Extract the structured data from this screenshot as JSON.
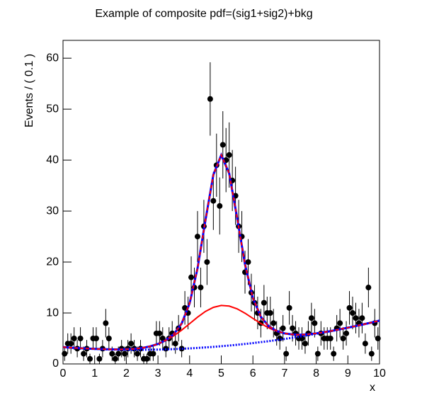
{
  "chart_data": {
    "type": "scatter",
    "title": "Example of composite pdf=(sig1+sig2)+bkg",
    "x_label": "x",
    "y_label": "Events / ( 0.1 )",
    "xlim": [
      0,
      10
    ],
    "ylim": [
      0,
      63.5
    ],
    "xticks": [
      0,
      1,
      2,
      3,
      4,
      5,
      6,
      7,
      8,
      9,
      10
    ],
    "yticks": [
      0,
      10,
      20,
      30,
      40,
      50,
      60
    ],
    "marker_color": "#000000",
    "x": [
      0.05,
      0.15,
      0.25,
      0.35,
      0.45,
      0.55,
      0.65,
      0.75,
      0.85,
      0.95,
      1.05,
      1.15,
      1.25,
      1.35,
      1.45,
      1.55,
      1.65,
      1.75,
      1.85,
      1.95,
      2.05,
      2.15,
      2.25,
      2.35,
      2.45,
      2.55,
      2.65,
      2.75,
      2.85,
      2.95,
      3.05,
      3.15,
      3.25,
      3.35,
      3.45,
      3.55,
      3.65,
      3.75,
      3.85,
      3.95,
      4.05,
      4.15,
      4.25,
      4.35,
      4.45,
      4.55,
      4.65,
      4.75,
      4.85,
      4.95,
      5.05,
      5.15,
      5.25,
      5.35,
      5.45,
      5.55,
      5.65,
      5.75,
      5.85,
      5.95,
      6.05,
      6.15,
      6.25,
      6.35,
      6.45,
      6.55,
      6.65,
      6.75,
      6.85,
      6.95,
      7.05,
      7.15,
      7.25,
      7.35,
      7.45,
      7.55,
      7.65,
      7.75,
      7.85,
      7.95,
      8.05,
      8.15,
      8.25,
      8.35,
      8.45,
      8.55,
      8.65,
      8.75,
      8.85,
      8.95,
      9.05,
      9.15,
      9.25,
      9.35,
      9.45,
      9.55,
      9.65,
      9.75,
      9.85,
      9.95
    ],
    "values": [
      2,
      4,
      4,
      5,
      3,
      5,
      2,
      3,
      1,
      5,
      5,
      1,
      3,
      8,
      5,
      2,
      1,
      2,
      3,
      2,
      3,
      4,
      3,
      2,
      3,
      1,
      1,
      2,
      2,
      6,
      6,
      5,
      3,
      5,
      6,
      4,
      7,
      3,
      11,
      10,
      17,
      15,
      25,
      15,
      27,
      20,
      52,
      32,
      39,
      31,
      43,
      40,
      41,
      36,
      33,
      27,
      25,
      18,
      20,
      14,
      12,
      10,
      8,
      12,
      10,
      10,
      8,
      6,
      5,
      7,
      2,
      11,
      7,
      6,
      5,
      5,
      4,
      6,
      9,
      8,
      2,
      6,
      5,
      5,
      5,
      2,
      7,
      8,
      5,
      6,
      11,
      10,
      9,
      8,
      9,
      4,
      15,
      2,
      8,
      5
    ],
    "errors": [
      1.4,
      2,
      2,
      2.2,
      1.7,
      2.2,
      1.4,
      1.7,
      1,
      2.2,
      2.2,
      1,
      1.7,
      2.8,
      2.2,
      1.4,
      1,
      1.4,
      1.7,
      1.4,
      1.7,
      2,
      1.7,
      1.4,
      1.7,
      1,
      1,
      1.4,
      1.4,
      2.4,
      2.4,
      2.2,
      1.7,
      2.2,
      2.4,
      2,
      2.6,
      1.7,
      3.3,
      3.2,
      4.1,
      3.9,
      5,
      3.9,
      5.2,
      4.5,
      7.2,
      5.7,
      6.2,
      5.6,
      6.6,
      6.3,
      6.4,
      6,
      5.7,
      5.2,
      5,
      4.2,
      4.5,
      3.7,
      3.5,
      3.2,
      2.8,
      3.5,
      3.2,
      3.2,
      2.8,
      2.4,
      2.2,
      2.6,
      1.4,
      3.3,
      2.6,
      2.4,
      2.2,
      2.2,
      2,
      2.4,
      3,
      2.8,
      1.4,
      2.4,
      2.2,
      2.2,
      2.2,
      1.4,
      2.6,
      2.8,
      2.2,
      2.4,
      3.3,
      3.2,
      3,
      2.8,
      3,
      2,
      3.9,
      1.4,
      2.8,
      2.2
    ],
    "curve_x": [
      0,
      0.25,
      0.5,
      0.75,
      1,
      1.25,
      1.5,
      1.75,
      2,
      2.25,
      2.5,
      2.75,
      3,
      3.25,
      3.5,
      3.75,
      4,
      4.25,
      4.5,
      4.75,
      5,
      5.25,
      5.5,
      5.75,
      6,
      6.25,
      6.5,
      6.75,
      7,
      7.25,
      7.5,
      7.75,
      8,
      8.25,
      8.5,
      8.75,
      9,
      9.25,
      9.5,
      9.75,
      10
    ],
    "curves": [
      {
        "color": "#0000ff",
        "style": "dotted",
        "values": [
          3.3,
          3.19,
          3.1,
          3.02,
          2.95,
          2.89,
          2.84,
          2.81,
          2.79,
          2.78,
          2.78,
          2.8,
          2.82,
          2.86,
          2.91,
          2.98,
          3.05,
          3.14,
          3.24,
          3.35,
          3.48,
          3.61,
          3.76,
          3.92,
          4.09,
          4.28,
          4.47,
          4.68,
          4.9,
          5.14,
          5.38,
          5.64,
          5.91,
          6.19,
          6.48,
          6.79,
          7.11,
          7.44,
          7.78,
          8.13,
          8.5
        ]
      },
      {
        "color": "#ff0000",
        "style": "solid",
        "values": [
          3.3,
          3.19,
          3.1,
          3.02,
          2.95,
          2.9,
          2.86,
          2.85,
          2.88,
          2.96,
          3.13,
          3.44,
          3.9,
          4.59,
          5.51,
          6.64,
          7.9,
          9.18,
          10.3,
          11.1,
          11.48,
          11.36,
          10.82,
          9.96,
          8.94,
          7.94,
          7.07,
          6.41,
          5.98,
          5.78,
          5.73,
          5.82,
          6,
          6.23,
          6.5,
          6.8,
          7.11,
          7.44,
          7.78,
          8.13,
          8.5
        ]
      },
      {
        "color": "#ff0000",
        "outline_color": "#0000ff",
        "style": "dashed",
        "values": [
          3.3,
          3.19,
          3.1,
          3.02,
          2.95,
          2.9,
          2.86,
          2.85,
          2.88,
          2.96,
          3.13,
          3.44,
          3.91,
          4.66,
          5.84,
          7.94,
          11.89,
          18.76,
          28.19,
          37.13,
          40.98,
          37.39,
          28.71,
          19.54,
          12.93,
          9.24,
          7.4,
          6.48,
          5.99,
          5.78,
          5.73,
          5.82,
          6,
          6.23,
          6.5,
          6.8,
          7.11,
          7.44,
          7.78,
          8.13,
          8.5
        ]
      }
    ]
  }
}
